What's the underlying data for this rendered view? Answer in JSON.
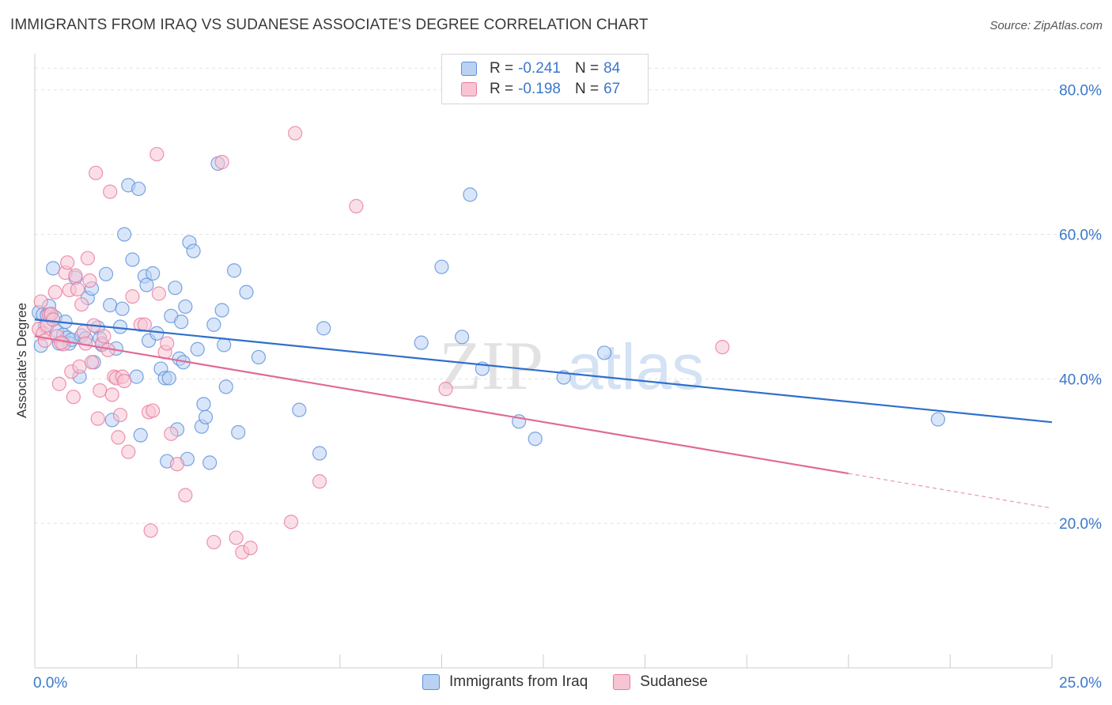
{
  "header": {
    "title": "IMMIGRANTS FROM IRAQ VS SUDANESE ASSOCIATE'S DEGREE CORRELATION CHART",
    "source": "Source: ZipAtlas.com"
  },
  "colors": {
    "iraq_fill": "#b9d2f4",
    "iraq_stroke": "#5b8fd9",
    "iraq_line": "#2f6fcc",
    "sudanese_fill": "#f7c4d4",
    "sudanese_stroke": "#e8799d",
    "sudanese_line": "#e06a94",
    "axis_label": "#3a78cc"
  },
  "legend": {
    "rows": [
      {
        "r_label": "R =",
        "r_value": "-0.241",
        "n_label": "N =",
        "n_value": "84"
      },
      {
        "r_label": "R =",
        "r_value": "-0.198",
        "n_label": "N =",
        "n_value": "67"
      }
    ]
  },
  "watermark": {
    "zip": "ZIP",
    "atlas": "atlas"
  },
  "chart_data": {
    "type": "scatter",
    "title": "IMMIGRANTS FROM IRAQ VS SUDANESE ASSOCIATE'S DEGREE CORRELATION CHART",
    "xlabel": "",
    "ylabel": "Associate's Degree",
    "xlim": [
      0,
      25
    ],
    "ylim": [
      0,
      85
    ],
    "x_tick_labels": [
      "0.0%",
      "25.0%"
    ],
    "y_ticks": [
      20,
      40,
      60,
      80
    ],
    "y_tick_labels": [
      "20.0%",
      "40.0%",
      "60.0%",
      "80.0%"
    ],
    "grid": true,
    "legend_position": "top-center",
    "series": [
      {
        "name": "Immigrants from Iraq",
        "r": -0.241,
        "n": 84,
        "trend": {
          "x": [
            0,
            25
          ],
          "y": [
            48.2,
            34.0
          ]
        },
        "points": [
          [
            0.1,
            49.2
          ],
          [
            0.2,
            48.9
          ],
          [
            0.15,
            44.6
          ],
          [
            0.3,
            48.8
          ],
          [
            0.35,
            50.1
          ],
          [
            0.4,
            48.9
          ],
          [
            0.5,
            48.5
          ],
          [
            0.55,
            46.6
          ],
          [
            0.45,
            55.3
          ],
          [
            0.6,
            44.9
          ],
          [
            0.7,
            46.1
          ],
          [
            0.75,
            47.9
          ],
          [
            0.8,
            45.7
          ],
          [
            0.85,
            44.9
          ],
          [
            0.9,
            45.4
          ],
          [
            1.0,
            54.0
          ],
          [
            1.1,
            40.3
          ],
          [
            1.15,
            46.0
          ],
          [
            1.25,
            45.6
          ],
          [
            1.3,
            51.2
          ],
          [
            1.4,
            52.5
          ],
          [
            1.45,
            42.3
          ],
          [
            1.55,
            47.1
          ],
          [
            1.6,
            45.6
          ],
          [
            1.65,
            44.7
          ],
          [
            1.75,
            54.5
          ],
          [
            1.85,
            50.2
          ],
          [
            1.9,
            34.3
          ],
          [
            2.0,
            44.2
          ],
          [
            2.1,
            47.2
          ],
          [
            2.15,
            49.7
          ],
          [
            2.2,
            60.0
          ],
          [
            2.3,
            66.8
          ],
          [
            2.4,
            56.5
          ],
          [
            2.5,
            40.3
          ],
          [
            2.55,
            66.3
          ],
          [
            2.6,
            32.2
          ],
          [
            2.7,
            54.2
          ],
          [
            2.75,
            53.0
          ],
          [
            2.8,
            45.3
          ],
          [
            2.9,
            54.6
          ],
          [
            3.0,
            46.3
          ],
          [
            3.1,
            41.4
          ],
          [
            3.2,
            40.1
          ],
          [
            3.25,
            28.6
          ],
          [
            3.3,
            40.1
          ],
          [
            3.35,
            48.7
          ],
          [
            3.45,
            52.6
          ],
          [
            3.5,
            33.0
          ],
          [
            3.55,
            42.8
          ],
          [
            3.6,
            47.9
          ],
          [
            3.65,
            42.3
          ],
          [
            3.7,
            50.0
          ],
          [
            3.75,
            28.9
          ],
          [
            3.8,
            58.9
          ],
          [
            3.9,
            57.7
          ],
          [
            4.0,
            44.1
          ],
          [
            4.1,
            33.4
          ],
          [
            4.15,
            36.5
          ],
          [
            4.2,
            34.7
          ],
          [
            4.3,
            28.4
          ],
          [
            4.4,
            47.5
          ],
          [
            4.5,
            69.8
          ],
          [
            4.6,
            49.5
          ],
          [
            4.65,
            44.7
          ],
          [
            4.7,
            38.9
          ],
          [
            4.9,
            55.0
          ],
          [
            5.0,
            32.6
          ],
          [
            5.2,
            52.0
          ],
          [
            5.5,
            43.0
          ],
          [
            6.5,
            35.7
          ],
          [
            7.0,
            29.7
          ],
          [
            7.1,
            47.0
          ],
          [
            9.5,
            45.0
          ],
          [
            10.0,
            55.5
          ],
          [
            10.5,
            45.8
          ],
          [
            10.7,
            65.5
          ],
          [
            11.0,
            41.4
          ],
          [
            11.9,
            34.1
          ],
          [
            12.3,
            31.7
          ],
          [
            13.0,
            40.2
          ],
          [
            14.0,
            43.6
          ],
          [
            22.2,
            34.4
          ],
          [
            0.25,
            47.3
          ]
        ]
      },
      {
        "name": "Sudanese",
        "r": -0.198,
        "n": 67,
        "trend": {
          "x": [
            0,
            20
          ],
          "y": [
            45.9,
            26.9
          ]
        },
        "trend_dashed": {
          "x": [
            20,
            25
          ],
          "y": [
            26.9,
            22.1
          ]
        },
        "points": [
          [
            0.1,
            46.9
          ],
          [
            0.15,
            50.7
          ],
          [
            0.2,
            46.3
          ],
          [
            0.3,
            47.4
          ],
          [
            0.35,
            48.9
          ],
          [
            0.4,
            49.0
          ],
          [
            0.45,
            48.2
          ],
          [
            0.5,
            52.0
          ],
          [
            0.55,
            45.9
          ],
          [
            0.6,
            39.3
          ],
          [
            0.7,
            44.8
          ],
          [
            0.75,
            54.7
          ],
          [
            0.8,
            56.1
          ],
          [
            0.85,
            52.3
          ],
          [
            0.9,
            41.0
          ],
          [
            0.95,
            37.5
          ],
          [
            1.0,
            54.3
          ],
          [
            1.05,
            52.4
          ],
          [
            1.1,
            41.7
          ],
          [
            1.15,
            50.3
          ],
          [
            1.2,
            46.5
          ],
          [
            1.25,
            44.9
          ],
          [
            1.3,
            56.7
          ],
          [
            1.35,
            53.6
          ],
          [
            1.4,
            42.3
          ],
          [
            1.45,
            47.4
          ],
          [
            1.5,
            68.5
          ],
          [
            1.55,
            34.5
          ],
          [
            1.6,
            38.4
          ],
          [
            1.65,
            44.9
          ],
          [
            1.7,
            45.9
          ],
          [
            1.85,
            65.9
          ],
          [
            1.9,
            37.8
          ],
          [
            1.95,
            40.3
          ],
          [
            2.0,
            40.1
          ],
          [
            2.05,
            31.9
          ],
          [
            2.1,
            35.0
          ],
          [
            2.15,
            40.3
          ],
          [
            2.2,
            39.7
          ],
          [
            2.3,
            29.9
          ],
          [
            2.4,
            51.4
          ],
          [
            2.6,
            47.5
          ],
          [
            2.7,
            47.5
          ],
          [
            2.8,
            35.4
          ],
          [
            2.85,
            19.0
          ],
          [
            2.9,
            35.6
          ],
          [
            3.0,
            71.1
          ],
          [
            3.05,
            51.8
          ],
          [
            3.2,
            43.7
          ],
          [
            3.25,
            44.9
          ],
          [
            3.35,
            32.4
          ],
          [
            3.5,
            28.2
          ],
          [
            3.7,
            23.9
          ],
          [
            4.4,
            17.4
          ],
          [
            4.6,
            70.0
          ],
          [
            4.95,
            18.0
          ],
          [
            5.1,
            16.0
          ],
          [
            5.3,
            16.6
          ],
          [
            6.3,
            20.2
          ],
          [
            6.4,
            74.0
          ],
          [
            7.0,
            25.8
          ],
          [
            7.9,
            63.9
          ],
          [
            10.1,
            38.6
          ],
          [
            16.9,
            44.4
          ],
          [
            0.25,
            45.3
          ],
          [
            0.65,
            45.0
          ],
          [
            1.8,
            44.0
          ]
        ]
      }
    ]
  },
  "bottom_legend": {
    "items": [
      {
        "label": "Immigrants from Iraq"
      },
      {
        "label": "Sudanese"
      }
    ]
  }
}
